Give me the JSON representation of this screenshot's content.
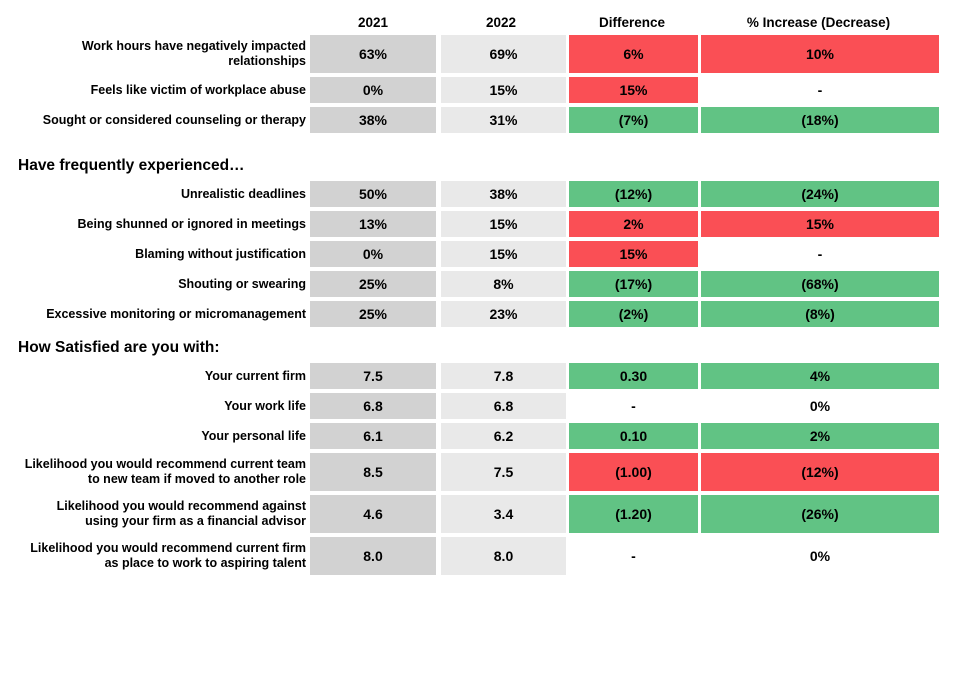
{
  "colors": {
    "increase_red": "#FA4F55",
    "decrease_green": "#61C384",
    "col_2021_bg": "#D2D2D2",
    "col_2022_bg": "#E9E9E9",
    "neutral_bg": "#FFFFFF",
    "text": "#000000"
  },
  "chart_data": {
    "type": "table",
    "columns": [
      "2021",
      "2022",
      "Difference",
      "% Increase (Decrease)"
    ],
    "color_legend": {
      "red": "increase / worsened",
      "green": "decrease / improved",
      "none": "no change"
    },
    "sections": [
      {
        "title": "",
        "rows": [
          {
            "label": "Work hours have negatively impacted relationships",
            "y2021": "63%",
            "y2022": "69%",
            "difference": "6%",
            "difference_color": "red",
            "pct_change": "10%",
            "pct_color": "red"
          },
          {
            "label": "Feels like victim of workplace abuse",
            "y2021": "0%",
            "y2022": "15%",
            "difference": "15%",
            "difference_color": "red",
            "pct_change": "-",
            "pct_color": "none"
          },
          {
            "label": "Sought or considered counseling or therapy",
            "y2021": "38%",
            "y2022": "31%",
            "difference": "(7%)",
            "difference_color": "green",
            "pct_change": "(18%)",
            "pct_color": "green"
          }
        ]
      },
      {
        "title": "Have frequently experienced…",
        "rows": [
          {
            "label": "Unrealistic deadlines",
            "y2021": "50%",
            "y2022": "38%",
            "difference": "(12%)",
            "difference_color": "green",
            "pct_change": "(24%)",
            "pct_color": "green"
          },
          {
            "label": "Being shunned or ignored in meetings",
            "y2021": "13%",
            "y2022": "15%",
            "difference": "2%",
            "difference_color": "red",
            "pct_change": "15%",
            "pct_color": "red"
          },
          {
            "label": "Blaming without justification",
            "y2021": "0%",
            "y2022": "15%",
            "difference": "15%",
            "difference_color": "red",
            "pct_change": "-",
            "pct_color": "none"
          },
          {
            "label": "Shouting or swearing",
            "y2021": "25%",
            "y2022": "8%",
            "difference": "(17%)",
            "difference_color": "green",
            "pct_change": "(68%)",
            "pct_color": "green"
          },
          {
            "label": "Excessive monitoring or micromanagement",
            "y2021": "25%",
            "y2022": "23%",
            "difference": "(2%)",
            "difference_color": "green",
            "pct_change": "(8%)",
            "pct_color": "green"
          }
        ]
      },
      {
        "title": "How Satisfied are you with:",
        "rows": [
          {
            "label": "Your current firm",
            "y2021": "7.5",
            "y2022": "7.8",
            "difference": "0.30",
            "difference_color": "green",
            "pct_change": "4%",
            "pct_color": "green"
          },
          {
            "label": "Your work life",
            "y2021": "6.8",
            "y2022": "6.8",
            "difference": "-",
            "difference_color": "none",
            "pct_change": "0%",
            "pct_color": "none"
          },
          {
            "label": "Your personal life",
            "y2021": "6.1",
            "y2022": "6.2",
            "difference": "0.10",
            "difference_color": "green",
            "pct_change": "2%",
            "pct_color": "green"
          },
          {
            "label": "Likelihood you would recommend current team to new team if moved to another role",
            "y2021": "8.5",
            "y2022": "7.5",
            "difference": "(1.00)",
            "difference_color": "red",
            "pct_change": "(12%)",
            "pct_color": "red"
          },
          {
            "label": "Likelihood you would recommend against using your firm as a financial advisor",
            "y2021": "4.6",
            "y2022": "3.4",
            "difference": "(1.20)",
            "difference_color": "green",
            "pct_change": "(26%)",
            "pct_color": "green"
          },
          {
            "label": "Likelihood you would recommend current firm as place to work to aspiring talent",
            "y2021": "8.0",
            "y2022": "8.0",
            "difference": "-",
            "difference_color": "none",
            "pct_change": "0%",
            "pct_color": "none"
          }
        ]
      }
    ]
  }
}
